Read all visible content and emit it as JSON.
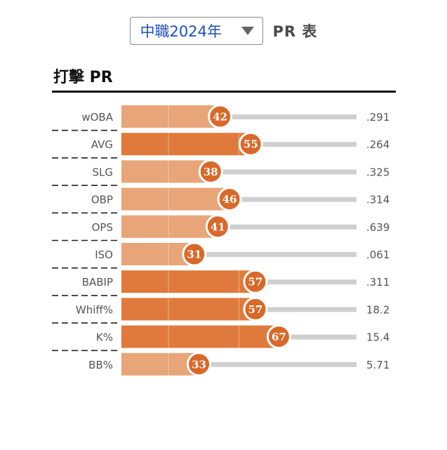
{
  "header": {
    "season_select": "中職2024年",
    "table_title": "PR 表"
  },
  "section": {
    "title": "打擊 PR"
  },
  "colors": {
    "bar_strong": "#e07a3c",
    "bar_light": "#e8a578",
    "badge": "#d8692a",
    "track": "#cfcfcf"
  },
  "chart_data": {
    "type": "bar",
    "orientation": "horizontal",
    "xlim": [
      0,
      100
    ],
    "categories": [
      "wOBA",
      "AVG",
      "SLG",
      "OBP",
      "OPS",
      "ISO",
      "BABIP",
      "Whiff%",
      "K%",
      "BB%"
    ],
    "series": [
      {
        "values": [
          42,
          55,
          38,
          46,
          41,
          31,
          57,
          57,
          67,
          33
        ]
      }
    ],
    "stat_values": [
      ".291",
      ".264",
      ".325",
      ".314",
      ".639",
      ".061",
      ".311",
      "18.2",
      "15.4",
      "5.71"
    ]
  }
}
